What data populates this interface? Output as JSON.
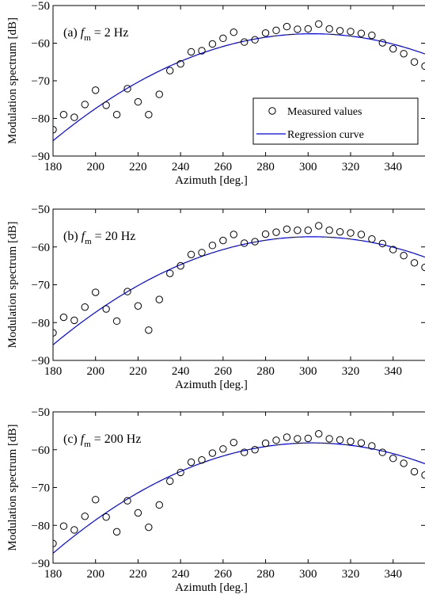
{
  "figure": {
    "legend": {
      "position": "lower-right (top panel only)",
      "markers": [
        "circle-open",
        "line"
      ]
    },
    "colors": {
      "curve": "#0000ff",
      "markers": "#000000",
      "axes": "#000000"
    }
  },
  "chart_data": [
    {
      "type": "scatter",
      "panel": "a",
      "title": {
        "prefix": "(a) ",
        "f": "f",
        "sub": "m",
        "rest": " = 2 Hz"
      },
      "xlabel": "Azimuth [deg.]",
      "ylabel": "Modulation spectrum [dB]",
      "xlim": [
        180,
        355
      ],
      "ylim": [
        -90,
        -50
      ],
      "xticks": [
        180,
        200,
        220,
        240,
        260,
        280,
        300,
        320,
        340
      ],
      "yticks": [
        -90,
        -80,
        -70,
        -60,
        -50
      ],
      "xtick_labels": [
        "180",
        "200",
        "220",
        "240",
        "260",
        "280",
        "300",
        "320",
        "340"
      ],
      "ytick_labels": [
        "−90",
        "−80",
        "−70",
        "−60",
        "−50"
      ],
      "grid": false,
      "legend": {
        "show": true,
        "location": "lower-right",
        "entries": [
          "Measured values",
          "Regression curve"
        ]
      },
      "series": [
        {
          "name": "Measured values",
          "style": "marker",
          "x": [
            180,
            185,
            190,
            195,
            200,
            205,
            210,
            215,
            220,
            225,
            230,
            235,
            240,
            245,
            250,
            255,
            260,
            265,
            270,
            275,
            280,
            285,
            290,
            295,
            300,
            305,
            310,
            315,
            320,
            325,
            330,
            335,
            340,
            345,
            350,
            355
          ],
          "y": [
            -83.0,
            -79.0,
            -79.7,
            -76.3,
            -72.5,
            -76.5,
            -79.0,
            -72.1,
            -75.6,
            -79.0,
            -73.6,
            -67.3,
            -65.5,
            -62.3,
            -62.0,
            -60.2,
            -58.7,
            -57.1,
            -59.7,
            -59.1,
            -57.3,
            -56.6,
            -55.6,
            -56.3,
            -56.2,
            -54.9,
            -56.2,
            -56.7,
            -56.9,
            -57.4,
            -57.9,
            -59.9,
            -61.5,
            -62.8,
            -65.0,
            -66.1
          ]
        },
        {
          "name": "Regression curve",
          "style": "line",
          "curve": {
            "vertex_x": 302,
            "vertex_y": -57.5,
            "a": -0.00191
          }
        }
      ]
    },
    {
      "type": "scatter",
      "panel": "b",
      "title": {
        "prefix": "(b) ",
        "f": "f",
        "sub": "m",
        "rest": " = 20 Hz"
      },
      "xlabel": "Azimuth [deg.]",
      "ylabel": "Modulation spectrum [dB]",
      "xlim": [
        180,
        355
      ],
      "ylim": [
        -90,
        -50
      ],
      "xticks": [
        180,
        200,
        220,
        240,
        260,
        280,
        300,
        320,
        340
      ],
      "yticks": [
        -90,
        -80,
        -70,
        -60,
        -50
      ],
      "xtick_labels": [
        "180",
        "200",
        "220",
        "240",
        "260",
        "280",
        "300",
        "320",
        "340"
      ],
      "ytick_labels": [
        "−90",
        "−80",
        "−70",
        "−60",
        "−50"
      ],
      "grid": false,
      "legend": {
        "show": false
      },
      "series": [
        {
          "name": "Measured values",
          "style": "marker",
          "x": [
            180,
            185,
            190,
            195,
            200,
            205,
            210,
            215,
            220,
            225,
            230,
            235,
            240,
            245,
            250,
            255,
            260,
            265,
            270,
            275,
            280,
            285,
            290,
            295,
            300,
            305,
            310,
            315,
            320,
            325,
            330,
            335,
            340,
            345,
            350,
            355
          ],
          "y": [
            -82.7,
            -78.6,
            -79.4,
            -75.9,
            -72.0,
            -76.4,
            -79.6,
            -71.8,
            -75.6,
            -82.0,
            -73.9,
            -67.0,
            -65.0,
            -62.0,
            -61.5,
            -59.6,
            -58.3,
            -56.7,
            -59.0,
            -58.6,
            -56.6,
            -56.1,
            -55.3,
            -55.6,
            -55.6,
            -54.4,
            -55.6,
            -56.0,
            -56.3,
            -56.7,
            -57.9,
            -59.1,
            -60.7,
            -62.3,
            -64.2,
            -65.4
          ]
        },
        {
          "name": "Regression curve",
          "style": "line",
          "curve": {
            "vertex_x": 302,
            "vertex_y": -57.3,
            "a": -0.00192
          }
        }
      ]
    },
    {
      "type": "scatter",
      "panel": "c",
      "title": {
        "prefix": "(c) ",
        "f": "f",
        "sub": "m",
        "rest": " = 200 Hz"
      },
      "xlabel": "Azimuth [deg.]",
      "ylabel": "Modulation spectrum [dB]",
      "xlim": [
        180,
        355
      ],
      "ylim": [
        -90,
        -50
      ],
      "xticks": [
        180,
        200,
        220,
        240,
        260,
        280,
        300,
        320,
        340
      ],
      "yticks": [
        -90,
        -80,
        -70,
        -60,
        -50
      ],
      "xtick_labels": [
        "180",
        "200",
        "220",
        "240",
        "260",
        "280",
        "300",
        "320",
        "340"
      ],
      "ytick_labels": [
        "−90",
        "−80",
        "−70",
        "−60",
        "−50"
      ],
      "grid": false,
      "legend": {
        "show": false
      },
      "series": [
        {
          "name": "Measured values",
          "style": "marker",
          "x": [
            180,
            185,
            190,
            195,
            200,
            205,
            210,
            215,
            220,
            225,
            230,
            235,
            240,
            245,
            250,
            255,
            260,
            265,
            270,
            275,
            280,
            285,
            290,
            295,
            300,
            305,
            310,
            315,
            320,
            325,
            330,
            335,
            340,
            345,
            350,
            355
          ],
          "y": [
            -84.8,
            -80.2,
            -81.2,
            -77.6,
            -73.2,
            -77.8,
            -81.7,
            -73.5,
            -76.7,
            -80.5,
            -74.6,
            -68.3,
            -66.0,
            -63.3,
            -62.7,
            -60.9,
            -59.8,
            -58.1,
            -60.7,
            -60.0,
            -58.3,
            -57.5,
            -56.7,
            -57.1,
            -57.0,
            -55.8,
            -57.1,
            -57.4,
            -57.8,
            -58.2,
            -59.0,
            -60.7,
            -62.3,
            -63.6,
            -65.8,
            -66.7
          ]
        },
        {
          "name": "Regression curve",
          "style": "line",
          "curve": {
            "vertex_x": 302,
            "vertex_y": -58.2,
            "a": -0.00196
          }
        }
      ]
    }
  ]
}
